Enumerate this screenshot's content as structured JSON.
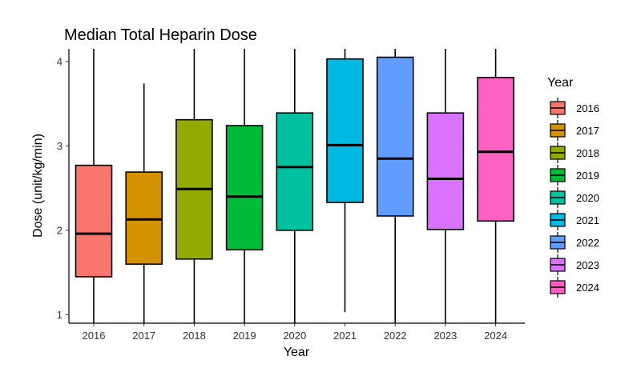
{
  "chart_data": {
    "type": "boxplot",
    "title": "Median Total Heparin Dose",
    "xlabel": "Year",
    "ylabel": "Dose (unit/kg/min)",
    "ylim": [
      0.9,
      4.15
    ],
    "yticks": [
      1,
      2,
      3,
      4
    ],
    "categories": [
      "2016",
      "2017",
      "2018",
      "2019",
      "2020",
      "2021",
      "2022",
      "2023",
      "2024"
    ],
    "series": [
      {
        "name": "2016",
        "color": "#F8766D",
        "whisker_low": 0.9,
        "q1": 1.45,
        "median": 1.96,
        "q3": 2.77,
        "whisker_high": 4.15
      },
      {
        "name": "2017",
        "color": "#D39200",
        "whisker_low": 0.9,
        "q1": 1.6,
        "median": 2.13,
        "q3": 2.69,
        "whisker_high": 3.74
      },
      {
        "name": "2018",
        "color": "#93AA00",
        "whisker_low": 0.9,
        "q1": 1.66,
        "median": 2.49,
        "q3": 3.31,
        "whisker_high": 4.15
      },
      {
        "name": "2019",
        "color": "#00BA38",
        "whisker_low": 0.9,
        "q1": 1.77,
        "median": 2.4,
        "q3": 3.24,
        "whisker_high": 4.15
      },
      {
        "name": "2020",
        "color": "#00C19F",
        "whisker_low": 0.9,
        "q1": 2.0,
        "median": 2.75,
        "q3": 3.39,
        "whisker_high": 4.15
      },
      {
        "name": "2021",
        "color": "#00B9E3",
        "whisker_low": 1.03,
        "q1": 2.33,
        "median": 3.01,
        "q3": 4.03,
        "whisker_high": 4.15
      },
      {
        "name": "2022",
        "color": "#619CFF",
        "whisker_low": 0.9,
        "q1": 2.17,
        "median": 2.85,
        "q3": 4.05,
        "whisker_high": 4.15
      },
      {
        "name": "2023",
        "color": "#DB72FB",
        "whisker_low": 0.9,
        "q1": 2.01,
        "median": 2.61,
        "q3": 3.39,
        "whisker_high": 4.15
      },
      {
        "name": "2024",
        "color": "#FF61C3",
        "whisker_low": 0.9,
        "q1": 2.11,
        "median": 2.93,
        "q3": 3.81,
        "whisker_high": 4.15
      }
    ],
    "grid": false,
    "legend": {
      "title": "Year",
      "placement": "right"
    }
  }
}
